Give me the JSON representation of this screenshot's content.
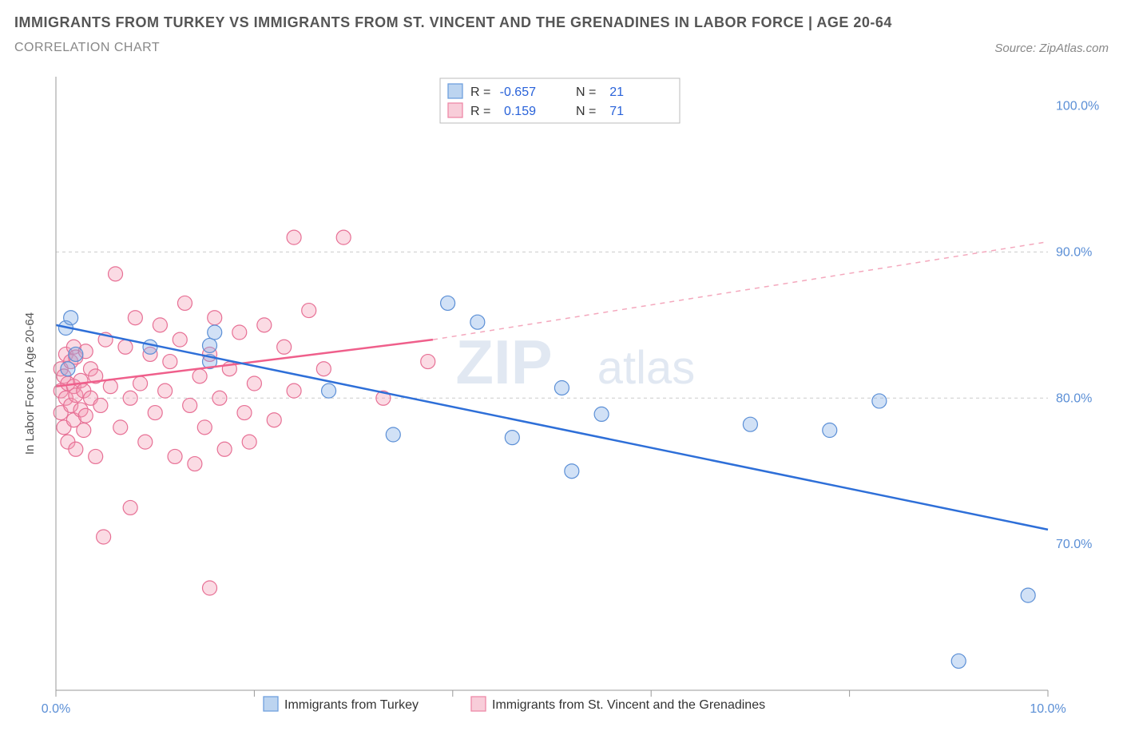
{
  "title": "IMMIGRANTS FROM TURKEY VS IMMIGRANTS FROM ST. VINCENT AND THE GRENADINES IN LABOR FORCE | AGE 20-64",
  "subtitle": "CORRELATION CHART",
  "source_label": "Source:",
  "source_value": "ZipAtlas.com",
  "watermark_a": "ZIP",
  "watermark_b": "atlas",
  "y_axis_label": "In Labor Force | Age 20-64",
  "chart": {
    "type": "scatter-with-regression",
    "background_color": "#ffffff",
    "grid_color": "#cccccc",
    "axis_color": "#999999",
    "xlim": [
      0,
      10
    ],
    "ylim": [
      60,
      102
    ],
    "x_ticks": [
      0,
      2,
      4,
      6,
      8,
      10
    ],
    "x_tick_labels": [
      "0.0%",
      "",
      "",
      "",
      "",
      "10.0%"
    ],
    "y_ticks": [
      70,
      80,
      90,
      100
    ],
    "y_tick_labels": [
      "70.0%",
      "80.0%",
      "90.0%",
      "100.0%"
    ],
    "y_grid_at": [
      80,
      90
    ],
    "marker_radius": 9,
    "series": [
      {
        "name": "Immigrants from Turkey",
        "color_fill": "rgba(122,170,230,0.35)",
        "color_stroke": "#5b8fd6",
        "swatch_fill": "#bcd4f0",
        "swatch_stroke": "#6fa0de",
        "R": "-0.657",
        "N": "21",
        "regression": {
          "x1": 0,
          "y1": 85.0,
          "x2": 10,
          "y2": 71.0,
          "dashed": false,
          "color": "#2e6fd8"
        },
        "points": [
          [
            0.1,
            84.8
          ],
          [
            0.12,
            82.0
          ],
          [
            0.15,
            85.5
          ],
          [
            0.2,
            83.0
          ],
          [
            0.95,
            83.5
          ],
          [
            1.55,
            82.5
          ],
          [
            1.55,
            83.6
          ],
          [
            1.6,
            84.5
          ],
          [
            2.75,
            80.5
          ],
          [
            3.4,
            77.5
          ],
          [
            3.95,
            86.5
          ],
          [
            4.25,
            85.2
          ],
          [
            4.6,
            77.3
          ],
          [
            5.1,
            80.7
          ],
          [
            5.2,
            75.0
          ],
          [
            5.5,
            78.9
          ],
          [
            7.0,
            78.2
          ],
          [
            7.8,
            77.8
          ],
          [
            8.3,
            79.8
          ],
          [
            9.1,
            62.0
          ],
          [
            9.8,
            66.5
          ]
        ]
      },
      {
        "name": "Immigrants from St. Vincent and the Grenadines",
        "color_fill": "rgba(244,153,178,0.35)",
        "color_stroke": "#e77095",
        "swatch_fill": "#f8cdd9",
        "swatch_stroke": "#ed89a8",
        "R": "0.159",
        "N": "71",
        "regression_solid": {
          "x1": 0,
          "y1": 80.8,
          "x2": 3.8,
          "y2": 84.0,
          "color": "#ef5f8b"
        },
        "regression_dashed": {
          "x1": 3.8,
          "y1": 84.0,
          "x2": 10,
          "y2": 90.7,
          "color": "#f4a8bd"
        },
        "points": [
          [
            0.05,
            79.0
          ],
          [
            0.05,
            80.5
          ],
          [
            0.05,
            82.0
          ],
          [
            0.08,
            78.0
          ],
          [
            0.08,
            81.5
          ],
          [
            0.1,
            80.0
          ],
          [
            0.1,
            83.0
          ],
          [
            0.12,
            77.0
          ],
          [
            0.12,
            81.0
          ],
          [
            0.15,
            79.5
          ],
          [
            0.15,
            82.5
          ],
          [
            0.18,
            78.5
          ],
          [
            0.18,
            80.8
          ],
          [
            0.18,
            83.5
          ],
          [
            0.2,
            76.5
          ],
          [
            0.2,
            80.2
          ],
          [
            0.2,
            82.8
          ],
          [
            0.25,
            79.2
          ],
          [
            0.25,
            81.2
          ],
          [
            0.28,
            77.8
          ],
          [
            0.28,
            80.5
          ],
          [
            0.3,
            83.2
          ],
          [
            0.3,
            78.8
          ],
          [
            0.35,
            80.0
          ],
          [
            0.35,
            82.0
          ],
          [
            0.4,
            76.0
          ],
          [
            0.4,
            81.5
          ],
          [
            0.45,
            79.5
          ],
          [
            0.48,
            70.5
          ],
          [
            0.5,
            84.0
          ],
          [
            0.55,
            80.8
          ],
          [
            0.6,
            88.5
          ],
          [
            0.65,
            78.0
          ],
          [
            0.7,
            83.5
          ],
          [
            0.75,
            80.0
          ],
          [
            0.75,
            72.5
          ],
          [
            0.8,
            85.5
          ],
          [
            0.85,
            81.0
          ],
          [
            0.9,
            77.0
          ],
          [
            0.95,
            83.0
          ],
          [
            1.0,
            79.0
          ],
          [
            1.05,
            85.0
          ],
          [
            1.1,
            80.5
          ],
          [
            1.15,
            82.5
          ],
          [
            1.2,
            76.0
          ],
          [
            1.25,
            84.0
          ],
          [
            1.3,
            86.5
          ],
          [
            1.35,
            79.5
          ],
          [
            1.4,
            75.5
          ],
          [
            1.45,
            81.5
          ],
          [
            1.5,
            78.0
          ],
          [
            1.55,
            83.0
          ],
          [
            1.6,
            85.5
          ],
          [
            1.65,
            80.0
          ],
          [
            1.7,
            76.5
          ],
          [
            1.75,
            82.0
          ],
          [
            1.55,
            67.0
          ],
          [
            1.85,
            84.5
          ],
          [
            1.9,
            79.0
          ],
          [
            1.95,
            77.0
          ],
          [
            2.0,
            81.0
          ],
          [
            2.1,
            85.0
          ],
          [
            2.2,
            78.5
          ],
          [
            2.3,
            83.5
          ],
          [
            2.4,
            80.5
          ],
          [
            2.4,
            91.0
          ],
          [
            2.55,
            86.0
          ],
          [
            2.7,
            82.0
          ],
          [
            2.9,
            91.0
          ],
          [
            3.3,
            80.0
          ],
          [
            3.75,
            82.5
          ]
        ]
      }
    ]
  },
  "legend_top": {
    "col_R": "R =",
    "col_N": "N ="
  },
  "legend_bottom": {
    "series_a": "Immigrants from Turkey",
    "series_b": "Immigrants from St. Vincent and the Grenadines"
  }
}
